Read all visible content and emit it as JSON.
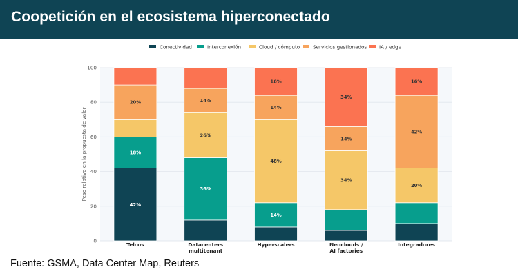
{
  "header": {
    "title": "Coopetición en el ecosistema hiperconectado"
  },
  "footer": {
    "source": "Fuente: GSMA, Data Center Map, Reuters"
  },
  "chart_data": {
    "type": "bar",
    "stacked": true,
    "title": "",
    "xlabel": "",
    "ylabel": "Peso relativo en la propuesta de valor",
    "ylim": [
      0,
      100
    ],
    "yticks": [
      0,
      20,
      40,
      60,
      80,
      100
    ],
    "grid": true,
    "legend_position": "top",
    "categories": [
      [
        "Telcos"
      ],
      [
        "Datacenters",
        "multitenant"
      ],
      [
        "Hyperscalers"
      ],
      [
        "Neoclouds /",
        "AI factories"
      ],
      [
        "Integradores"
      ]
    ],
    "series": [
      {
        "name": "Conectividad",
        "color": "#0f4454",
        "values": [
          42,
          12,
          8,
          6,
          10
        ]
      },
      {
        "name": "Interconexión",
        "color": "#079e8d",
        "values": [
          18,
          36,
          14,
          12,
          12
        ]
      },
      {
        "name": "Cloud / cómputo",
        "color": "#f5c768",
        "values": [
          10,
          26,
          48,
          34,
          20
        ]
      },
      {
        "name": "Servicios gestionados",
        "color": "#f7a45d",
        "values": [
          20,
          14,
          14,
          14,
          42
        ]
      },
      {
        "name": "IA / edge",
        "color": "#fb7351",
        "values": [
          10,
          12,
          16,
          34,
          16
        ]
      }
    ],
    "data_labels": [
      [
        "42%",
        "",
        "",
        "",
        ""
      ],
      [
        "18%",
        "36%",
        "14%",
        "",
        ""
      ],
      [
        "",
        "26%",
        "48%",
        "34%",
        "20%"
      ],
      [
        "20%",
        "14%",
        "14%",
        "14%",
        "42%"
      ],
      [
        "",
        "",
        "16%",
        "34%",
        "16%"
      ]
    ]
  }
}
